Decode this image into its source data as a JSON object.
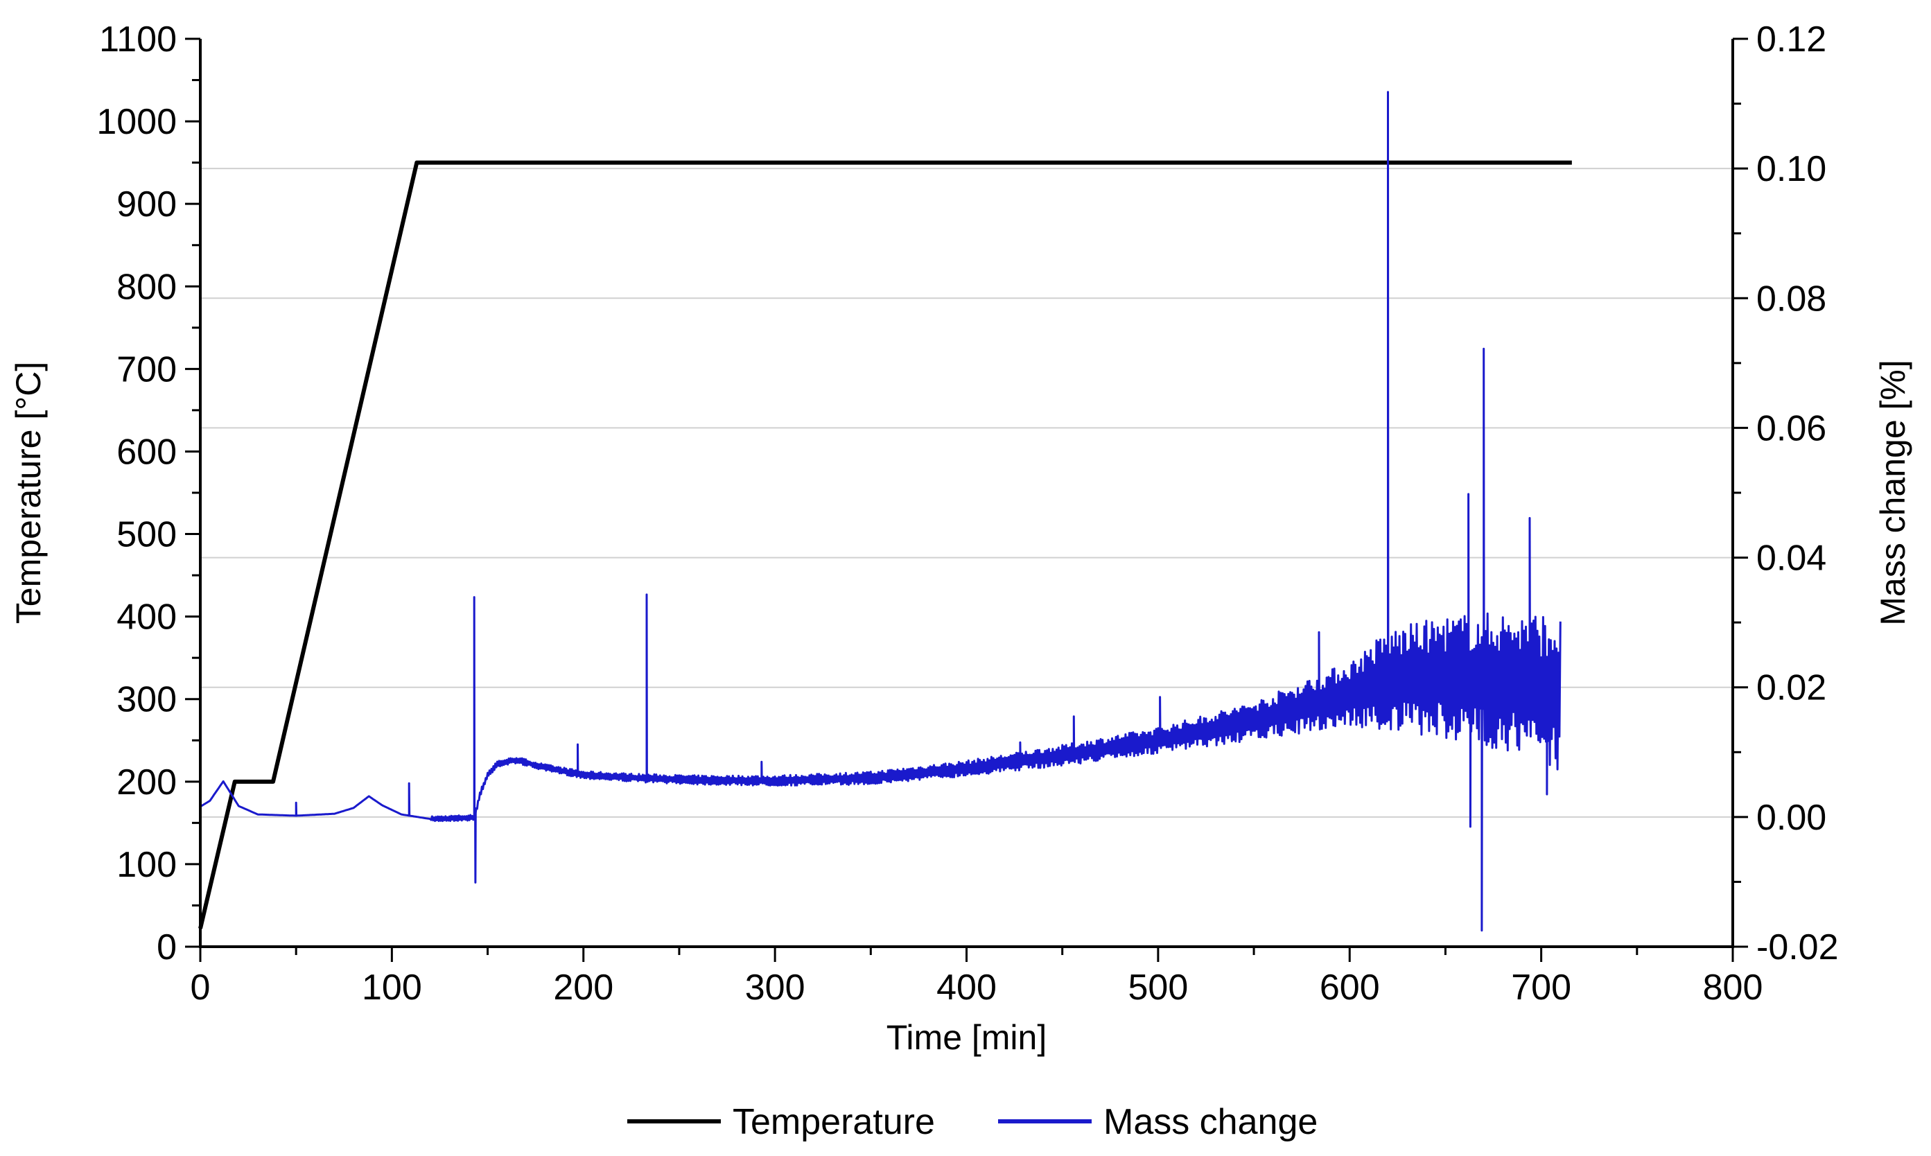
{
  "chart_data": {
    "type": "line",
    "title": "",
    "xlabel": "Time [min]",
    "ylabel": "Temperature [°C]",
    "y2label": "Mass change [%]",
    "xlim": [
      0,
      800
    ],
    "ylim": [
      0,
      1100
    ],
    "y2lim": [
      -0.02,
      0.12
    ],
    "x_ticks": [
      0,
      100,
      200,
      300,
      400,
      500,
      600,
      700,
      800
    ],
    "y_ticks": [
      0,
      100,
      200,
      300,
      400,
      500,
      600,
      700,
      800,
      900,
      1000,
      1100
    ],
    "y2_ticks": [
      "-0.02",
      "0.00",
      "0.02",
      "0.04",
      "0.06",
      "0.08",
      "0.10",
      "0.12"
    ],
    "y2_tick_values": [
      -0.02,
      0.0,
      0.02,
      0.04,
      0.06,
      0.08,
      0.1,
      0.12
    ],
    "gridlines_y2": [
      0.0,
      0.02,
      0.04,
      0.06,
      0.08,
      0.1
    ],
    "legend_position": "bottom-center",
    "series": [
      {
        "name": "Temperature",
        "axis": "left",
        "color": "#000000",
        "x": [
          0,
          18,
          20,
          38,
          113,
          716
        ],
        "y": [
          22,
          200,
          200,
          200,
          950,
          950
        ]
      },
      {
        "name": "Mass change",
        "axis": "right",
        "color": "#1a1acc",
        "baseline": {
          "x": [
            0,
            5,
            12,
            20,
            30,
            50,
            70,
            80,
            88,
            95,
            105,
            120,
            142,
            143,
            146,
            150,
            155,
            165,
            180,
            200,
            230,
            260,
            300,
            350,
            400,
            450,
            500,
            550,
            600,
            620,
            650,
            680,
            700,
            710
          ],
          "y": [
            0.0016,
            0.0025,
            0.0055,
            0.0017,
            0.0004,
            0.0002,
            0.0005,
            0.0014,
            0.0032,
            0.0018,
            0.0004,
            -0.0003,
            -0.0001,
            -0.0001,
            0.0035,
            0.0065,
            0.0082,
            0.0088,
            0.0076,
            0.0065,
            0.006,
            0.0057,
            0.0056,
            0.006,
            0.0075,
            0.0095,
            0.0118,
            0.0148,
            0.019,
            0.021,
            0.0215,
            0.021,
            0.02,
            0.019
          ]
        },
        "noise": {
          "x": [
            120,
            300,
            400,
            500,
            550,
            600,
            620,
            660,
            690,
            710
          ],
          "amplitude": [
            0.0004,
            0.0008,
            0.0012,
            0.002,
            0.003,
            0.005,
            0.008,
            0.01,
            0.011,
            0.012
          ]
        },
        "spikes": [
          {
            "x": 50,
            "y": 0.0022
          },
          {
            "x": 109,
            "y": 0.0052
          },
          {
            "x": 143,
            "y": 0.0339
          },
          {
            "x": 143.6,
            "y": -0.0101
          },
          {
            "x": 197,
            "y": 0.0112
          },
          {
            "x": 233,
            "y": 0.0343
          },
          {
            "x": 293,
            "y": 0.0085
          },
          {
            "x": 428,
            "y": 0.0115
          },
          {
            "x": 456,
            "y": 0.0155
          },
          {
            "x": 501,
            "y": 0.0185
          },
          {
            "x": 584,
            "y": 0.0285
          },
          {
            "x": 611,
            "y": 0.0227
          },
          {
            "x": 620,
            "y": 0.1118
          },
          {
            "x": 662,
            "y": 0.0498
          },
          {
            "x": 663,
            "y": -0.0015
          },
          {
            "x": 669,
            "y": -0.0175
          },
          {
            "x": 670,
            "y": 0.0722
          },
          {
            "x": 694,
            "y": 0.0461
          },
          {
            "x": 703,
            "y": 0.0035
          }
        ]
      }
    ]
  }
}
